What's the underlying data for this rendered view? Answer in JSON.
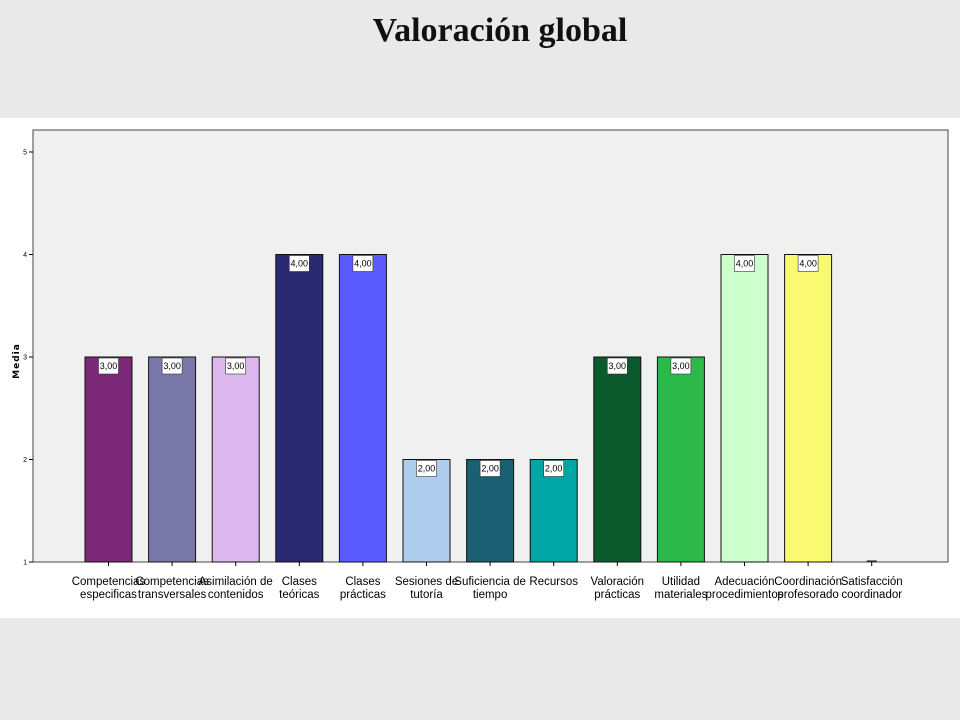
{
  "slide": {
    "title": "Valoración global"
  },
  "chart_data": {
    "type": "bar",
    "title": "Valoración global",
    "xlabel": "",
    "ylabel": "Media",
    "ylim": [
      1,
      5
    ],
    "yticks": [
      1,
      2,
      3,
      4,
      5
    ],
    "grid": false,
    "categories": [
      [
        "Competencias",
        "especificas"
      ],
      [
        "Competencias",
        "transversales"
      ],
      [
        "Asimilación de",
        "contenidos"
      ],
      [
        "Clases",
        "teóricas"
      ],
      [
        "Clases",
        "prácticas"
      ],
      [
        "Sesiones de",
        "tutoría"
      ],
      [
        "Suficiencia de",
        "tiempo"
      ],
      [
        "Recursos"
      ],
      [
        "Valoración",
        "prácticas"
      ],
      [
        "Utilidad",
        "materiales"
      ],
      [
        "Adecuación",
        "procedimientos"
      ],
      [
        "Coordinación",
        "profesorado"
      ],
      [
        "Satisfacción",
        "coordinador"
      ]
    ],
    "values": [
      3,
      3,
      3,
      4,
      4,
      2,
      2,
      2,
      3,
      3,
      4,
      4,
      1
    ],
    "data_labels": [
      "3,00",
      "3,00",
      "3,00",
      "4,00",
      "4,00",
      "2,00",
      "2,00",
      "2,00",
      "3,00",
      "3,00",
      "4,00",
      "4,00",
      ""
    ],
    "colors": [
      "#7b2878",
      "#7a78a8",
      "#dcb8ee",
      "#2a2a72",
      "#5b5bff",
      "#aecdee",
      "#1b5f72",
      "#00a5a5",
      "#0b5a2e",
      "#2db84a",
      "#ccffcc",
      "#fafa72",
      "#ffffff"
    ]
  }
}
